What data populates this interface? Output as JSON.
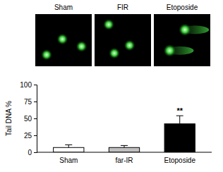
{
  "images": {
    "labels": [
      "Sham",
      "FIR",
      "Etoposide"
    ]
  },
  "chart_data": {
    "type": "bar",
    "y_label": "Tail DNA %",
    "categories": [
      "Sham",
      "far-IR",
      "Etoposide"
    ],
    "values": [
      7,
      7,
      42
    ],
    "errors": [
      4,
      3,
      12
    ],
    "colors": [
      "#ffffff",
      "#c0c0c0",
      "#000000"
    ],
    "ylim": [
      0,
      100
    ],
    "yticks": [
      0,
      25,
      50,
      75,
      100
    ],
    "grid": false,
    "annotations": [
      {
        "text": "**",
        "x": "Etoposide"
      }
    ]
  }
}
